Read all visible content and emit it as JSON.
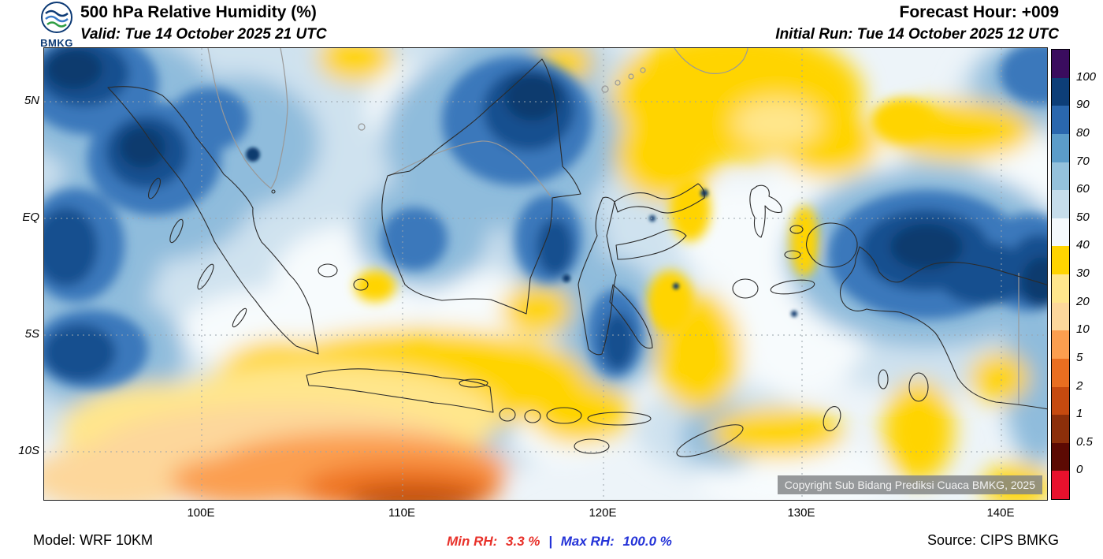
{
  "header": {
    "logo_label": "BMKG",
    "title": "500 hPa Relative Humidity (%)",
    "valid_line": "Valid: Tue 14 October 2025 21 UTC",
    "forecast_hour_line": "Forecast Hour: +009",
    "initial_run_line": "Initial Run: Tue 14 October 2025 12 UTC"
  },
  "map": {
    "copyright": "Copyright Sub Bidang Prediksi Cuaca BMKG, 2025",
    "y_axis_labels": [
      "5N",
      "EQ",
      "5S",
      "10S"
    ],
    "x_axis_labels": [
      "100E",
      "110E",
      "120E",
      "130E",
      "140E"
    ]
  },
  "footer": {
    "model_line": "Model: WRF 10KM",
    "min_rh_label": "Min RH:",
    "min_rh_value": "3.3 %",
    "separator": "|",
    "max_rh_label": "Max RH:",
    "max_rh_value": "100.0 %",
    "source_line": "Source: CIPS BMKG",
    "min_color": "#e8312a",
    "max_color": "#2433d8"
  },
  "chart_data": {
    "type": "heatmap",
    "title": "500 hPa Relative Humidity (%)",
    "variable": "Relative Humidity",
    "level": "500 hPa",
    "units": "%",
    "valid_time": "Tue 14 October 2025 21 UTC",
    "initial_run": "Tue 14 October 2025 12 UTC",
    "forecast_hour": "+009",
    "model": "WRF 10KM",
    "source": "CIPS BMKG",
    "x_axis": {
      "ticks": [
        "100E",
        "110E",
        "120E",
        "130E",
        "140E"
      ]
    },
    "y_axis": {
      "ticks": [
        "5N",
        "EQ",
        "5S",
        "10S"
      ]
    },
    "colorbar": {
      "position": "right",
      "boundary_labels": [
        "100",
        "90",
        "80",
        "70",
        "60",
        "50",
        "40",
        "30",
        "20",
        "10",
        "5",
        "2",
        "1",
        "0.5",
        "0"
      ],
      "segment_colors_top_to_bottom": [
        "#3a0c5e",
        "#0d3e78",
        "#2a67ae",
        "#5b9cc9",
        "#94c1dc",
        "#c6ddeb",
        "#f4f9fc",
        "#ffd400",
        "#ffe68c",
        "#fdd79b",
        "#fb9e4f",
        "#e96e20",
        "#c64a0f",
        "#8c2f0a",
        "#5c0a03",
        "#e8112d"
      ]
    },
    "min_rh_percent": 3.3,
    "max_rh_percent": 100.0,
    "field_summary": {
      "high_humidity_regions": [
        "west of Sumatra",
        "northern Borneo",
        "Papua and far east domain",
        "south Sulawesi"
      ],
      "low_humidity_regions": [
        "Indian Ocean south of Java (driest core)",
        "north-central Celebes Sea",
        "Banda Sea patches"
      ]
    }
  }
}
